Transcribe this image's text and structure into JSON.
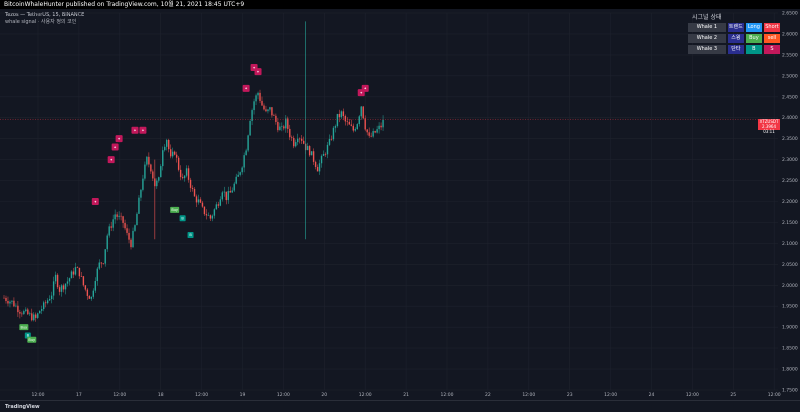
{
  "header": {
    "publish_line": "BitcoinWhaleHunter published on TradingView.com, 10월 21, 2021 18:45 UTC+9"
  },
  "legend": {
    "line1": "Tezos — TetherUS, 15, BINANCE",
    "line2": "whale signal · 사용자 정의 코인"
  },
  "panel": {
    "title": "시그널 상태",
    "rows": [
      {
        "name": "Whale 1",
        "a": "트렌드",
        "a_color": "#2a2e8f",
        "b": "Long",
        "b_color": "#2196f3",
        "c": "Short",
        "c_color": "#f23645"
      },
      {
        "name": "Whale 2",
        "a": "스윙",
        "a_color": "#2a2e8f",
        "b": "Buy",
        "b_color": "#4caf50",
        "c": "sell",
        "c_color": "#ff5722"
      },
      {
        "name": "Whale 3",
        "a": "단타",
        "a_color": "#2a2e8f",
        "b": "B",
        "b_color": "#009688",
        "c": "S",
        "c_color": "#c2185b"
      }
    ]
  },
  "price_tag": {
    "symbol": "XTZUSDT",
    "value": "2.3964",
    "countdown": "03:11"
  },
  "footer": {
    "logo": "TradingView"
  },
  "colors": {
    "up": "#26a69a",
    "down": "#ef5350",
    "sell_marker": "#c2185b",
    "buy_marker_green": "#4caf50",
    "buy_marker_teal": "#009688"
  },
  "chart_data": {
    "type": "candlestick",
    "y_ticks": [
      "2.6500",
      "2.6000",
      "2.5500",
      "2.5000",
      "2.4500",
      "2.4000",
      "2.3500",
      "2.3000",
      "2.2500",
      "2.2000",
      "2.1500",
      "2.1000",
      "2.0500",
      "2.0000",
      "1.9500",
      "1.9000",
      "1.8500",
      "1.8000",
      "1.7500"
    ],
    "ylim": [
      1.75,
      2.65
    ],
    "x_ticks": [
      "12:00",
      "17",
      "12:00",
      "18",
      "12:00",
      "19",
      "12:00",
      "20",
      "12:00",
      "21",
      "12:00",
      "22",
      "12:00",
      "23",
      "12:00",
      "24",
      "12:00",
      "25",
      "12:00"
    ],
    "close_path": [
      [
        0,
        1.97
      ],
      [
        2,
        1.96
      ],
      [
        4,
        1.94
      ],
      [
        6,
        1.93
      ],
      [
        8,
        1.92
      ],
      [
        9,
        1.94
      ],
      [
        10,
        1.95
      ],
      [
        12,
        1.98
      ],
      [
        13,
        2.02
      ],
      [
        14,
        1.99
      ],
      [
        16,
        2.01
      ],
      [
        18,
        2.04
      ],
      [
        19,
        2.03
      ],
      [
        20,
        2.0
      ],
      [
        21,
        1.98
      ],
      [
        22,
        1.97
      ],
      [
        23,
        2.02
      ],
      [
        24,
        2.05
      ],
      [
        25,
        2.06
      ],
      [
        26,
        2.12
      ],
      [
        28,
        2.17
      ],
      [
        30,
        2.15
      ],
      [
        31,
        2.12
      ],
      [
        32,
        2.1
      ],
      [
        33,
        2.14
      ],
      [
        34,
        2.2
      ],
      [
        35,
        2.26
      ],
      [
        36,
        2.3
      ],
      [
        37,
        2.28
      ],
      [
        38,
        2.24
      ],
      [
        39,
        2.25
      ],
      [
        40,
        2.33
      ],
      [
        41,
        2.35
      ],
      [
        42,
        2.3
      ],
      [
        43,
        2.32
      ],
      [
        44,
        2.28
      ],
      [
        45,
        2.25
      ],
      [
        46,
        2.27
      ],
      [
        47,
        2.24
      ],
      [
        48,
        2.21
      ],
      [
        49,
        2.2
      ],
      [
        50,
        2.18
      ],
      [
        51,
        2.17
      ],
      [
        52,
        2.16
      ],
      [
        53,
        2.18
      ],
      [
        54,
        2.2
      ],
      [
        55,
        2.23
      ],
      [
        56,
        2.21
      ],
      [
        57,
        2.22
      ],
      [
        58,
        2.24
      ],
      [
        59,
        2.26
      ],
      [
        60,
        2.29
      ],
      [
        61,
        2.33
      ],
      [
        62,
        2.4
      ],
      [
        63,
        2.44
      ],
      [
        64,
        2.46
      ],
      [
        65,
        2.43
      ],
      [
        66,
        2.41
      ],
      [
        67,
        2.42
      ],
      [
        68,
        2.4
      ],
      [
        69,
        2.38
      ],
      [
        70,
        2.37
      ],
      [
        71,
        2.39
      ],
      [
        72,
        2.36
      ],
      [
        73,
        2.34
      ],
      [
        74,
        2.36
      ],
      [
        75,
        2.35
      ],
      [
        76,
        2.33
      ],
      [
        77,
        2.32
      ],
      [
        78,
        2.3
      ],
      [
        79,
        2.28
      ],
      [
        80,
        2.3
      ],
      [
        81,
        2.32
      ],
      [
        82,
        2.34
      ],
      [
        83,
        2.37
      ],
      [
        84,
        2.4
      ],
      [
        85,
        2.41
      ],
      [
        86,
        2.39
      ],
      [
        87,
        2.38
      ],
      [
        88,
        2.37
      ],
      [
        89,
        2.39
      ],
      [
        90,
        2.43
      ],
      [
        91,
        2.38
      ],
      [
        92,
        2.35
      ],
      [
        93,
        2.36
      ],
      [
        94,
        2.37
      ],
      [
        95,
        2.38
      ],
      [
        96,
        2.4
      ]
    ],
    "x_domain": [
      0,
      195
    ],
    "vertical_lines": [
      {
        "x": 38,
        "low": 2.11,
        "high": 2.3,
        "color": "#ef5350"
      },
      {
        "x": 76,
        "low": 2.11,
        "high": 2.63,
        "color": "#26a69a"
      }
    ],
    "sell_markers": [
      [
        23,
        2.2
      ],
      [
        27,
        2.3
      ],
      [
        28,
        2.33
      ],
      [
        29,
        2.35
      ],
      [
        33,
        2.37
      ],
      [
        35,
        2.37
      ],
      [
        61,
        2.47
      ],
      [
        63,
        2.52
      ],
      [
        64,
        2.51
      ],
      [
        90,
        2.46
      ],
      [
        91,
        2.47
      ]
    ],
    "buy_markers": [
      {
        "x": 5,
        "y": 1.9,
        "label": "Buy",
        "color": "#4caf50"
      },
      {
        "x": 6,
        "y": 1.88,
        "label": "B",
        "color": "#009688"
      },
      {
        "x": 7,
        "y": 1.87,
        "label": "Buy",
        "color": "#4caf50"
      },
      {
        "x": 43,
        "y": 2.18,
        "label": "Buy",
        "color": "#4caf50"
      },
      {
        "x": 45,
        "y": 2.16,
        "label": "B",
        "color": "#009688"
      },
      {
        "x": 47,
        "y": 2.12,
        "label": "B",
        "color": "#009688"
      }
    ],
    "last_price": 2.3964
  }
}
